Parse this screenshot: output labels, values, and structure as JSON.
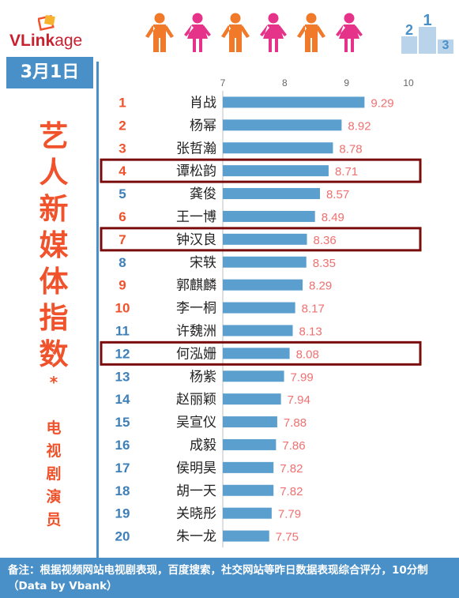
{
  "logo": {
    "text_bold": "VLink",
    "text_light": "age",
    "color": "#c8202e"
  },
  "date": "3月1日",
  "vertical_title": [
    "艺",
    "人",
    "新",
    "媒",
    "体",
    "指",
    "数"
  ],
  "asterisk": "*",
  "vertical_subtitle": [
    "电",
    "视",
    "剧",
    "演",
    "员"
  ],
  "footer_note": "备注：根据视频网站电视剧表现，百度搜索，社交网站等昨日数据表现综合评分，10分制（Data by Vbank）",
  "colors": {
    "accent_blue": "#4a90c8",
    "bar": "#5b9fcf",
    "rank": "#f0522c",
    "rank_alt": "#3d7fb8",
    "value": "#f07070",
    "title": "#f0522c",
    "highlight_box": "#7a0c0c",
    "person_orange": "#f07a2a",
    "person_pink": "#e6338a"
  },
  "people_icons": [
    "person-male-icon",
    "person-female-icon",
    "person-male-icon",
    "person-female-icon",
    "person-male-icon",
    "person-female-icon"
  ],
  "podium_icon": "podium-icon",
  "chart_data": {
    "type": "bar",
    "orientation": "horizontal",
    "xlim": [
      7,
      10
    ],
    "x_ticks": [
      7,
      8,
      9,
      10
    ],
    "grid": false,
    "ranks": [
      1,
      2,
      3,
      4,
      5,
      6,
      7,
      8,
      9,
      10,
      11,
      12,
      13,
      14,
      15,
      16,
      17,
      18,
      19,
      20
    ],
    "categories": [
      "肖战",
      "杨幂",
      "张哲瀚",
      "谭松韵",
      "龚俊",
      "王一博",
      "钟汉良",
      "宋轶",
      "郭麒麟",
      "李一桐",
      "许魏洲",
      "何泓姗",
      "杨紫",
      "赵丽颖",
      "吴宣仪",
      "成毅",
      "侯明昊",
      "胡一天",
      "关晓彤",
      "朱一龙"
    ],
    "values": [
      9.29,
      8.92,
      8.78,
      8.71,
      8.57,
      8.49,
      8.36,
      8.35,
      8.29,
      8.17,
      8.13,
      8.08,
      7.99,
      7.94,
      7.88,
      7.86,
      7.82,
      7.82,
      7.79,
      7.75
    ],
    "value_labels": [
      "9.29",
      "8.92",
      "8.78",
      "8.71",
      "8.57",
      "8.49",
      "8.36",
      "8.35",
      "8.29",
      "8.17",
      "8.13",
      "8.08",
      "7.99",
      "7.94",
      "7.88",
      "7.86",
      "7.82",
      "7.82",
      "7.79",
      "7.75"
    ],
    "highlighted": [
      "谭松韵",
      "钟汉良",
      "何泓姗"
    ]
  }
}
